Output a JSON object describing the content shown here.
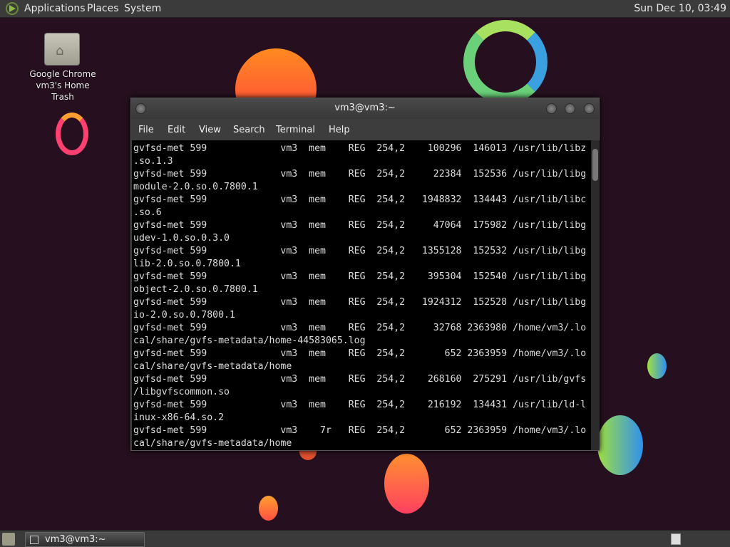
{
  "top_panel": {
    "menus": [
      "Applications",
      "Places",
      "System"
    ],
    "clock": "Sun Dec 10, 03:49"
  },
  "desktop": {
    "icon_labels": [
      "Google Chrome",
      "vm3's Home",
      "Trash"
    ]
  },
  "terminal": {
    "title": "vm3@vm3:~",
    "menu": [
      "File",
      "Edit",
      "View",
      "Search",
      "Terminal",
      "Help"
    ],
    "lines": [
      "gvfsd-met 599             vm3  mem    REG  254,2    100296  146013 /usr/lib/libz",
      ".so.1.3",
      "gvfsd-met 599             vm3  mem    REG  254,2     22384  152536 /usr/lib/libg",
      "module-2.0.so.0.7800.1",
      "gvfsd-met 599             vm3  mem    REG  254,2   1948832  134443 /usr/lib/libc",
      ".so.6",
      "gvfsd-met 599             vm3  mem    REG  254,2     47064  175982 /usr/lib/libg",
      "udev-1.0.so.0.3.0",
      "gvfsd-met 599             vm3  mem    REG  254,2   1355128  152532 /usr/lib/libg",
      "lib-2.0.so.0.7800.1",
      "gvfsd-met 599             vm3  mem    REG  254,2    395304  152540 /usr/lib/libg",
      "object-2.0.so.0.7800.1",
      "gvfsd-met 599             vm3  mem    REG  254,2   1924312  152528 /usr/lib/libg",
      "io-2.0.so.0.7800.1",
      "gvfsd-met 599             vm3  mem    REG  254,2     32768 2363980 /home/vm3/.lo",
      "cal/share/gvfs-metadata/home-44583065.log",
      "gvfsd-met 599             vm3  mem    REG  254,2       652 2363959 /home/vm3/.lo",
      "cal/share/gvfs-metadata/home",
      "gvfsd-met 599             vm3  mem    REG  254,2    268160  275291 /usr/lib/gvfs",
      "/libgvfscommon.so",
      "gvfsd-met 599             vm3  mem    REG  254,2    216192  134431 /usr/lib/ld-l",
      "inux-x86-64.so.2",
      "gvfsd-met 599             vm3    7r   REG  254,2       652 2363959 /home/vm3/.lo",
      "cal/share/gvfs-metadata/home"
    ]
  },
  "taskbar": {
    "items": [
      {
        "label": "vm3@vm3:~"
      }
    ]
  }
}
